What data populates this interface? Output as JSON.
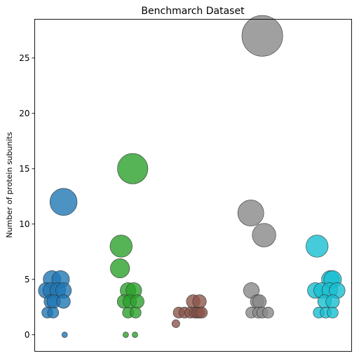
{
  "chart_data": {
    "type": "scatter",
    "title": "Benchmarch Dataset",
    "ylabel": "Number of protein subunits",
    "xlabel": "",
    "ylim": [
      -1.5,
      28.5
    ],
    "yticks": [
      0,
      5,
      10,
      15,
      20,
      25
    ],
    "grid": false,
    "series": [
      {
        "color": "#1f77b4",
        "points": [
          {
            "x": 1.0,
            "y": 12
          },
          {
            "x": 0.8,
            "y": 5
          },
          {
            "x": 0.95,
            "y": 5
          },
          {
            "x": 0.7,
            "y": 4
          },
          {
            "x": 0.78,
            "y": 4
          },
          {
            "x": 0.9,
            "y": 4
          },
          {
            "x": 1.0,
            "y": 4
          },
          {
            "x": 0.78,
            "y": 3
          },
          {
            "x": 0.83,
            "y": 3
          },
          {
            "x": 1.0,
            "y": 3
          },
          {
            "x": 0.72,
            "y": 2
          },
          {
            "x": 0.82,
            "y": 2
          },
          {
            "x": 1.02,
            "y": 0
          }
        ]
      },
      {
        "color": "#2ca02c",
        "points": [
          {
            "x": 2.2,
            "y": 15
          },
          {
            "x": 2.0,
            "y": 8
          },
          {
            "x": 1.98,
            "y": 6
          },
          {
            "x": 2.12,
            "y": 4
          },
          {
            "x": 2.22,
            "y": 4
          },
          {
            "x": 2.05,
            "y": 3
          },
          {
            "x": 2.15,
            "y": 3
          },
          {
            "x": 2.28,
            "y": 3
          },
          {
            "x": 2.12,
            "y": 2
          },
          {
            "x": 2.25,
            "y": 2
          },
          {
            "x": 2.08,
            "y": 0
          },
          {
            "x": 2.24,
            "y": 0
          }
        ]
      },
      {
        "color": "#8c564b",
        "points": [
          {
            "x": 3.25,
            "y": 3
          },
          {
            "x": 3.36,
            "y": 3
          },
          {
            "x": 3.0,
            "y": 2
          },
          {
            "x": 3.1,
            "y": 2
          },
          {
            "x": 3.2,
            "y": 2
          },
          {
            "x": 3.28,
            "y": 2
          },
          {
            "x": 3.32,
            "y": 2
          },
          {
            "x": 3.36,
            "y": 2
          },
          {
            "x": 3.4,
            "y": 2
          },
          {
            "x": 2.95,
            "y": 1
          }
        ]
      },
      {
        "color": "#888888",
        "points": [
          {
            "x": 4.45,
            "y": 27
          },
          {
            "x": 4.25,
            "y": 11
          },
          {
            "x": 4.48,
            "y": 9
          },
          {
            "x": 4.26,
            "y": 4
          },
          {
            "x": 4.36,
            "y": 3
          },
          {
            "x": 4.4,
            "y": 3
          },
          {
            "x": 4.26,
            "y": 2
          },
          {
            "x": 4.38,
            "y": 2
          },
          {
            "x": 4.45,
            "y": 2
          },
          {
            "x": 4.55,
            "y": 2
          }
        ]
      },
      {
        "color": "#17becf",
        "points": [
          {
            "x": 5.4,
            "y": 8
          },
          {
            "x": 5.63,
            "y": 5
          },
          {
            "x": 5.67,
            "y": 5
          },
          {
            "x": 5.37,
            "y": 4
          },
          {
            "x": 5.48,
            "y": 4
          },
          {
            "x": 5.62,
            "y": 4
          },
          {
            "x": 5.75,
            "y": 4
          },
          {
            "x": 5.53,
            "y": 3
          },
          {
            "x": 5.67,
            "y": 3
          },
          {
            "x": 5.43,
            "y": 2
          },
          {
            "x": 5.55,
            "y": 2
          },
          {
            "x": 5.67,
            "y": 2
          }
        ]
      }
    ]
  }
}
